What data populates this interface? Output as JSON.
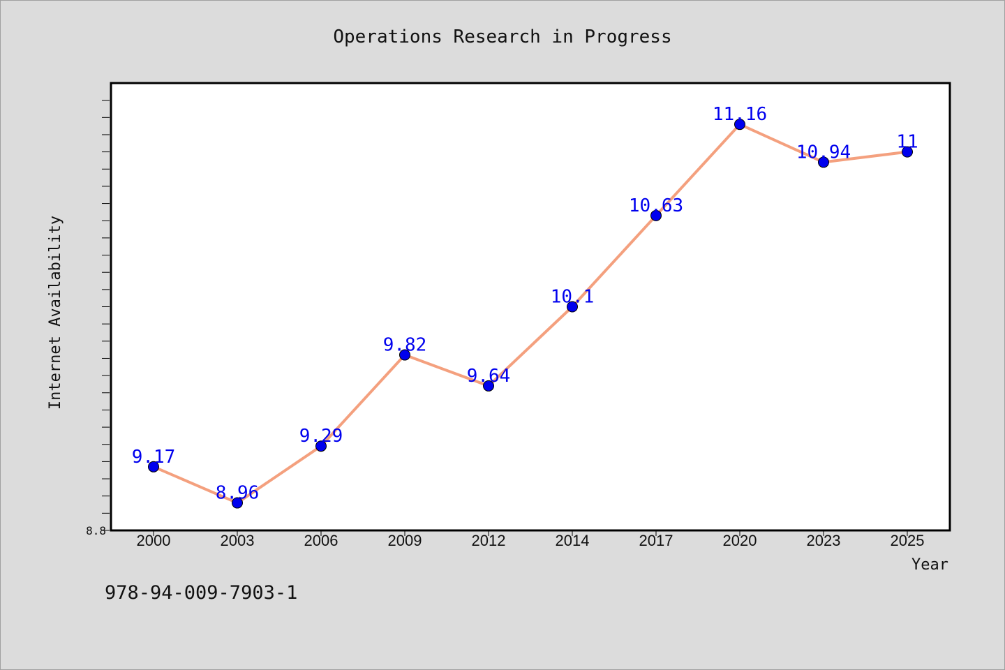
{
  "chart_data": {
    "type": "line",
    "title": "Operations Research in Progress",
    "xlabel": "Year",
    "ylabel": "Internet Availability",
    "categories": [
      "2000",
      "2003",
      "2006",
      "2009",
      "2012",
      "2014",
      "2017",
      "2020",
      "2023",
      "2025"
    ],
    "series": [
      {
        "values": [
          9.17,
          8.96,
          9.29,
          9.82,
          9.64,
          10.1,
          10.63,
          11.16,
          10.94,
          11
        ]
      }
    ],
    "data_labels": [
      "9.17",
      "8.96",
      "9.29",
      "9.82",
      "9.64",
      "10.1",
      "10.63",
      "11.16",
      "10.94",
      "11"
    ],
    "ylim": [
      8.8,
      11.4
    ],
    "ytick_labels": [
      "8.8"
    ],
    "grid": false,
    "legend": "none",
    "colors": {
      "line": "#f4a07e",
      "marker": "#0000ee",
      "data_label": "#0000ee",
      "plot_background": "#ffffff",
      "page_background": "#dcdcdc"
    }
  },
  "footer": {
    "isbn": "978-94-009-7903-1"
  }
}
